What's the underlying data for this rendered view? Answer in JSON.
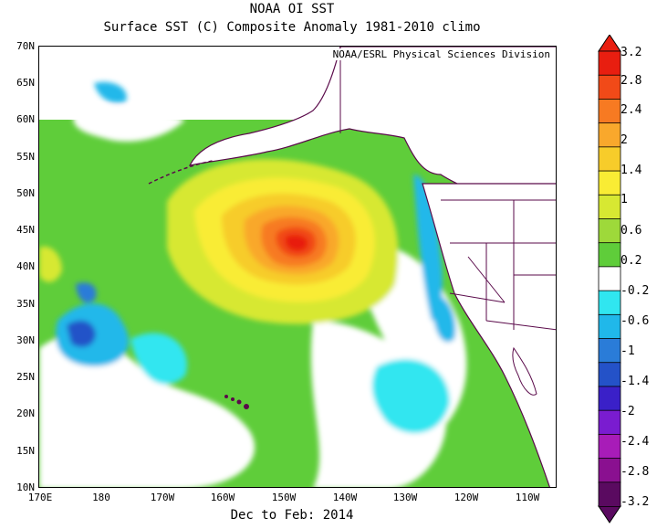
{
  "title": "NOAA OI SST",
  "subtitle": "Surface SST (C) Composite Anomaly 1981-2010 climo",
  "credit": "NOAA/ESRL Physical Sciences Division",
  "period": "Dec to Feb: 2014",
  "lat_labels": [
    "70N",
    "65N",
    "60N",
    "55N",
    "50N",
    "45N",
    "40N",
    "35N",
    "30N",
    "25N",
    "20N",
    "15N",
    "10N"
  ],
  "lon_labels": [
    "170E",
    "180",
    "170W",
    "160W",
    "150W",
    "140W",
    "130W",
    "120W",
    "110W"
  ],
  "colorbar": {
    "labels": [
      "3.2",
      "2.8",
      "2.4",
      "2",
      "1.4",
      "1",
      "0.6",
      "0.2",
      "-0.2",
      "-0.6",
      "-1",
      "-1.4",
      "-2",
      "-2.4",
      "-2.8",
      "-3.2"
    ],
    "colors": [
      "#e81e10",
      "#f14a18",
      "#f77a22",
      "#f9a82c",
      "#f7cc2a",
      "#f9ec34",
      "#d7e832",
      "#9ed93a",
      "#5fcd3a",
      "#ffffff",
      "#30e6f0",
      "#20b8ea",
      "#2a7cd8",
      "#2452c8",
      "#3a20c8",
      "#7a1cd0",
      "#a81cb8",
      "#8a1090",
      "#5a0a60"
    ]
  },
  "land_color": "#ffffff",
  "coast_color": "#5a0a4a"
}
